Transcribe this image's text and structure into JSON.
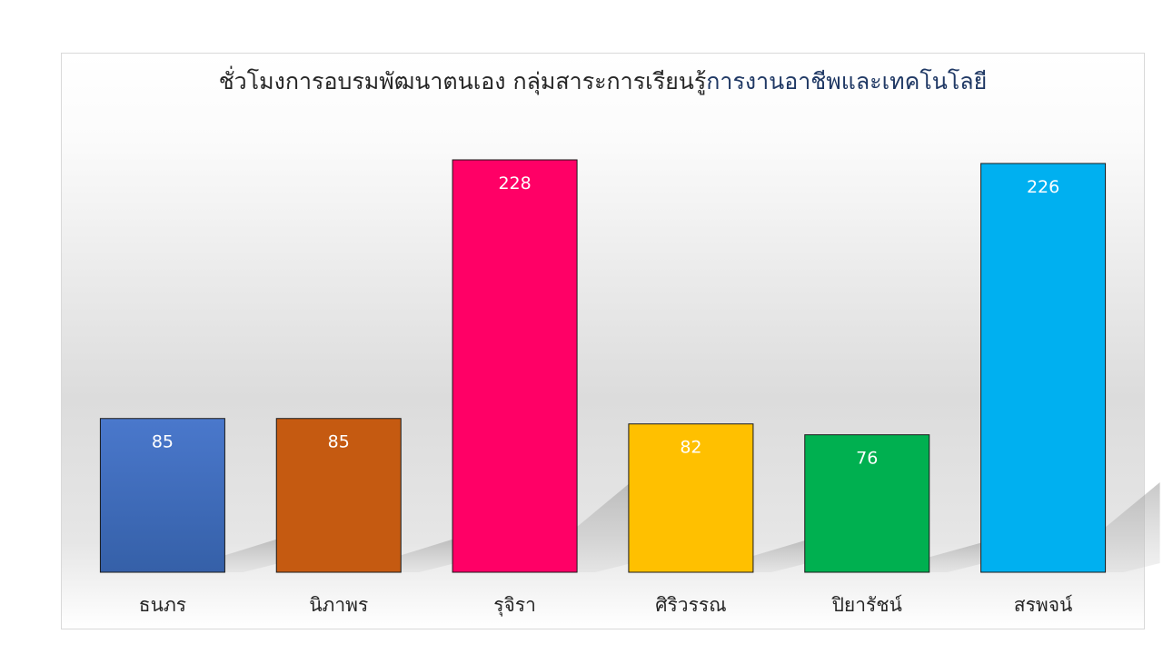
{
  "chart_data": {
    "type": "bar",
    "title": "ชั่วโมงการอบรมพัฒนาตนเอง กลุ่มสาระการเรียนรู้",
    "title_accent": "การงานอาชีพและเทคโนโลยี",
    "categories": [
      "ธนภร",
      "นิภาพร",
      "รุจิรา",
      "ศิริวรรณ",
      "ปิยารัชน์",
      "สรพจน์"
    ],
    "values": [
      85,
      85,
      228,
      82,
      76,
      226
    ],
    "colors": [
      "#4472c4",
      "#c55a11",
      "#ff0066",
      "#ffc000",
      "#00b050",
      "#00b0f0"
    ],
    "ylim": [
      0,
      230
    ],
    "grid": false,
    "legend": "none",
    "data_labels": true
  }
}
